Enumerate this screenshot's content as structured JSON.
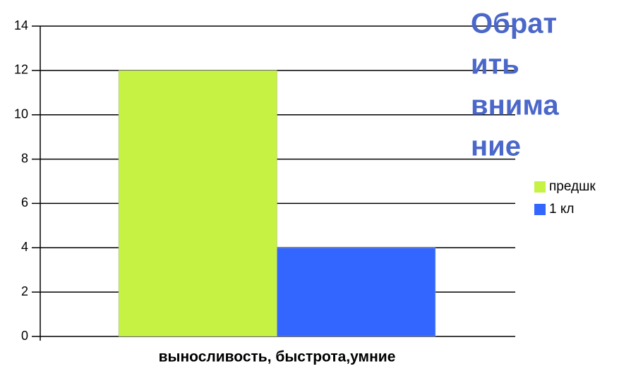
{
  "chart_data": {
    "type": "bar",
    "categories": [
      "выносливость, быстрота,умние"
    ],
    "series": [
      {
        "name": "предшк",
        "color": "#c6f243",
        "values": [
          12
        ]
      },
      {
        "name": "1 кл",
        "color": "#3366ff",
        "values": [
          4
        ]
      }
    ],
    "ylim": [
      0,
      14
    ],
    "yticks": [
      0,
      2,
      4,
      6,
      8,
      10,
      12,
      14
    ],
    "grid": true,
    "legend": "right",
    "annotation": [
      "Обрат",
      "ить",
      "внима",
      "ние"
    ]
  }
}
